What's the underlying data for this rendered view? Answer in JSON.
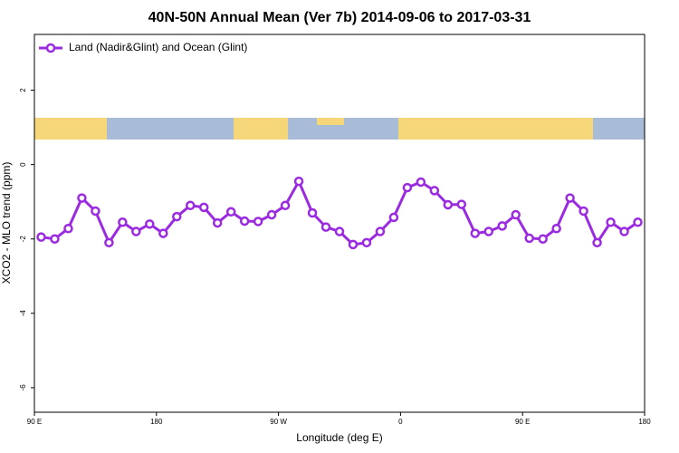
{
  "chart_data": {
    "type": "line",
    "title": "40N-50N Annual Mean (Ver 7b)   2014-09-06 to 2017-03-31",
    "x_label": "Longitude (deg E)",
    "y_label": "XCO2 - MLO trend (ppm)",
    "x": [
      95,
      105,
      115,
      125,
      135,
      145,
      155,
      165,
      175,
      185,
      195,
      205,
      215,
      225,
      235,
      245,
      255,
      265,
      275,
      285,
      295,
      305,
      315,
      325,
      335,
      345,
      355,
      365,
      375,
      385,
      395,
      405,
      415,
      425,
      435,
      445,
      455,
      465,
      475,
      485,
      495,
      505,
      515,
      525,
      535
    ],
    "series": [
      {
        "name": "Land (Nadir&Glint) and Ocean (Glint)",
        "color": "#9b2be0",
        "values": [
          -1.95,
          -2.0,
          -1.72,
          -0.9,
          -1.25,
          -2.1,
          -1.55,
          -1.8,
          -1.6,
          -1.85,
          -1.4,
          -1.1,
          -1.15,
          -1.57,
          -1.27,
          -1.52,
          -1.53,
          -1.35,
          -1.1,
          -0.45,
          -1.3,
          -1.68,
          -1.8,
          -2.15,
          -2.1,
          -1.8,
          -1.42,
          -0.62,
          -0.47,
          -0.7,
          -1.08,
          -1.07,
          -1.85,
          -1.8,
          -1.65,
          -1.35,
          -1.98,
          -2.0,
          -1.72,
          -0.9,
          -1.25,
          -2.1,
          -1.55,
          -1.8,
          -1.55
        ]
      }
    ],
    "xlim": [
      90,
      540
    ],
    "xticks": [
      {
        "value": 90,
        "label": "90 E"
      },
      180,
      {
        "value": 270,
        "label": "90 W"
      },
      {
        "value": 360,
        "label": "0"
      },
      {
        "value": 450,
        "label": "90 E"
      },
      {
        "value": 540,
        "label": "180"
      }
    ],
    "ylim": [
      -6.66,
      3.5
    ],
    "yticks": [
      2,
      0,
      -2,
      -4,
      -6
    ],
    "legend": "top-left"
  }
}
